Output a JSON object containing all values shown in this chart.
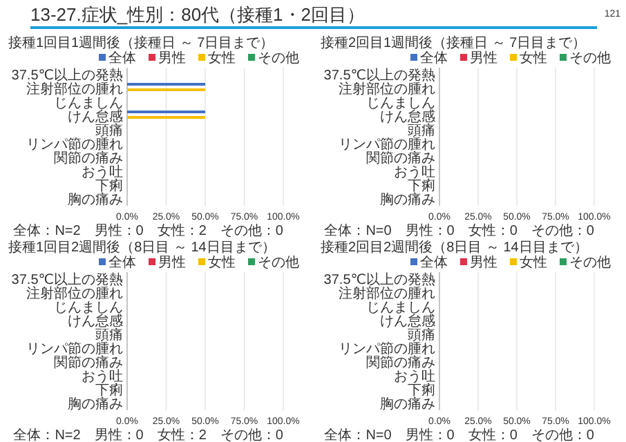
{
  "chart_data": [
    {
      "type": "other",
      "title": "13-27.症状_性別：80代（接種1・2回目）",
      "annotations": [
        "121"
      ]
    },
    {
      "type": "bar",
      "orientation": "horizontal",
      "title": "接種1回目1週間後（接種日 ～ 7日目まで）",
      "categories": [
        "37.5℃以上の発熱",
        "注射部位の腫れ",
        "じんましん",
        "けん怠感",
        "頭痛",
        "リンパ節の腫れ",
        "関節の痛み",
        "おう吐",
        "下痢",
        "胸の痛み"
      ],
      "series": [
        {
          "name": "全体",
          "color": "#4472c4",
          "values": [
            0,
            50,
            0,
            50,
            0,
            0,
            0,
            0,
            0,
            0
          ]
        },
        {
          "name": "男性",
          "color": "#e0304a",
          "values": [
            0,
            0,
            0,
            0,
            0,
            0,
            0,
            0,
            0,
            0
          ]
        },
        {
          "name": "女性",
          "color": "#f5c000",
          "values": [
            0,
            50,
            0,
            50,
            0,
            0,
            0,
            0,
            0,
            0
          ]
        },
        {
          "name": "その他",
          "color": "#2e9e5e",
          "values": [
            0,
            0,
            0,
            0,
            0,
            0,
            0,
            0,
            0,
            0
          ]
        }
      ],
      "xlim": [
        0,
        100
      ],
      "xticks": [
        {
          "value": 0,
          "label": "0.0%"
        },
        {
          "value": 25,
          "label": "25.0%"
        },
        {
          "value": 50,
          "label": "50.0%"
        },
        {
          "value": 75,
          "label": "75.0%"
        },
        {
          "value": 100,
          "label": "100.0%"
        }
      ],
      "grid": "x",
      "legend": "top",
      "annotations": [
        "全体：N=2　男性：0　女性：2　その他：0"
      ]
    },
    {
      "type": "bar",
      "orientation": "horizontal",
      "title": "接種2回目1週間後（接種日 ～ 7日目まで）",
      "categories": [
        "37.5℃以上の発熱",
        "注射部位の腫れ",
        "じんましん",
        "けん怠感",
        "頭痛",
        "リンパ節の腫れ",
        "関節の痛み",
        "おう吐",
        "下痢",
        "胸の痛み"
      ],
      "series": [
        {
          "name": "全体",
          "color": "#4472c4",
          "values": [
            0,
            0,
            0,
            0,
            0,
            0,
            0,
            0,
            0,
            0
          ]
        },
        {
          "name": "男性",
          "color": "#e0304a",
          "values": [
            0,
            0,
            0,
            0,
            0,
            0,
            0,
            0,
            0,
            0
          ]
        },
        {
          "name": "女性",
          "color": "#f5c000",
          "values": [
            0,
            0,
            0,
            0,
            0,
            0,
            0,
            0,
            0,
            0
          ]
        },
        {
          "name": "その他",
          "color": "#2e9e5e",
          "values": [
            0,
            0,
            0,
            0,
            0,
            0,
            0,
            0,
            0,
            0
          ]
        }
      ],
      "xlim": [
        0,
        100
      ],
      "xticks": [
        {
          "value": 0,
          "label": "0.0%"
        },
        {
          "value": 25,
          "label": "25.0%"
        },
        {
          "value": 50,
          "label": "50.0%"
        },
        {
          "value": 75,
          "label": "75.0%"
        },
        {
          "value": 100,
          "label": "100.0%"
        }
      ],
      "grid": "x",
      "legend": "top",
      "annotations": [
        "全体：N=0　男性：0　女性：0　その他：0"
      ]
    },
    {
      "type": "bar",
      "orientation": "horizontal",
      "title": "接種1回目2週間後（8日目 ～ 14日目まで）",
      "categories": [
        "37.5℃以上の発熱",
        "注射部位の腫れ",
        "じんましん",
        "けん怠感",
        "頭痛",
        "リンパ節の腫れ",
        "関節の痛み",
        "おう吐",
        "下痢",
        "胸の痛み"
      ],
      "series": [
        {
          "name": "全体",
          "color": "#4472c4",
          "values": [
            0,
            0,
            0,
            0,
            0,
            0,
            0,
            0,
            0,
            0
          ]
        },
        {
          "name": "男性",
          "color": "#e0304a",
          "values": [
            0,
            0,
            0,
            0,
            0,
            0,
            0,
            0,
            0,
            0
          ]
        },
        {
          "name": "女性",
          "color": "#f5c000",
          "values": [
            0,
            0,
            0,
            0,
            0,
            0,
            0,
            0,
            0,
            0
          ]
        },
        {
          "name": "その他",
          "color": "#2e9e5e",
          "values": [
            0,
            0,
            0,
            0,
            0,
            0,
            0,
            0,
            0,
            0
          ]
        }
      ],
      "xlim": [
        0,
        100
      ],
      "xticks": [
        {
          "value": 0,
          "label": "0.0%"
        },
        {
          "value": 25,
          "label": "25.0%"
        },
        {
          "value": 50,
          "label": "50.0%"
        },
        {
          "value": 75,
          "label": "75.0%"
        },
        {
          "value": 100,
          "label": "100.0%"
        }
      ],
      "grid": "x",
      "legend": "top",
      "annotations": [
        "全体：N=2　男性：0　女性：2　その他：0"
      ]
    },
    {
      "type": "bar",
      "orientation": "horizontal",
      "title": "接種2回目2週間後（8日目 ～ 14日目まで）",
      "categories": [
        "37.5℃以上の発熱",
        "注射部位の腫れ",
        "じんましん",
        "けん怠感",
        "頭痛",
        "リンパ節の腫れ",
        "関節の痛み",
        "おう吐",
        "下痢",
        "胸の痛み"
      ],
      "series": [
        {
          "name": "全体",
          "color": "#4472c4",
          "values": [
            0,
            0,
            0,
            0,
            0,
            0,
            0,
            0,
            0,
            0
          ]
        },
        {
          "name": "男性",
          "color": "#e0304a",
          "values": [
            0,
            0,
            0,
            0,
            0,
            0,
            0,
            0,
            0,
            0
          ]
        },
        {
          "name": "女性",
          "color": "#f5c000",
          "values": [
            0,
            0,
            0,
            0,
            0,
            0,
            0,
            0,
            0,
            0
          ]
        },
        {
          "name": "その他",
          "color": "#2e9e5e",
          "values": [
            0,
            0,
            0,
            0,
            0,
            0,
            0,
            0,
            0,
            0
          ]
        }
      ],
      "xlim": [
        0,
        100
      ],
      "xticks": [
        {
          "value": 0,
          "label": "0.0%"
        },
        {
          "value": 25,
          "label": "25.0%"
        },
        {
          "value": 50,
          "label": "50.0%"
        },
        {
          "value": 75,
          "label": "75.0%"
        },
        {
          "value": 100,
          "label": "100.0%"
        }
      ],
      "grid": "x",
      "legend": "top",
      "annotations": [
        "全体：N=0　男性：0　女性：0　その他：0"
      ]
    }
  ]
}
